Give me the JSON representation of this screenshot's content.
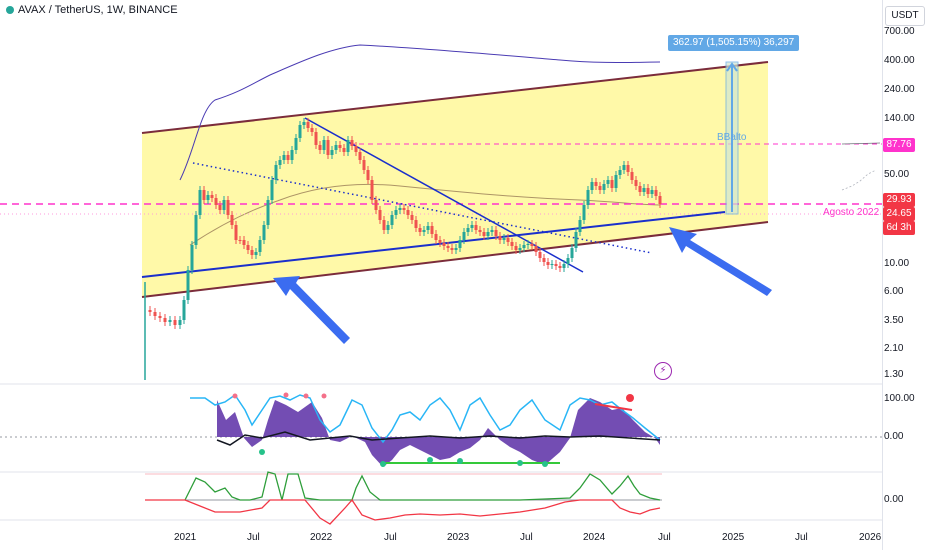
{
  "header": {
    "symbol_title": "AVAX / TetherUS, 1W, BINANCE"
  },
  "price_axis": {
    "currency": "USDT",
    "ticks": [
      "700.00",
      "400.00",
      "240.00",
      "140.00",
      "87.76",
      "50.00",
      "29.93",
      "24.65",
      "6d 3h",
      "10.00",
      "6.00",
      "3.50",
      "2.10",
      "1.30"
    ],
    "last_price": "24.65",
    "countdown": "6d 3h",
    "level_tag_upper": "87.76",
    "level_tag_lower": "29.93"
  },
  "osc_axis": {
    "upper_ticks": [
      "100.00",
      "0.00"
    ],
    "lower_ticks": [
      "0.00"
    ]
  },
  "time_axis": {
    "ticks": [
      "2021",
      "Jul",
      "2022",
      "Jul",
      "2023",
      "Jul",
      "2024",
      "Jul",
      "2025",
      "Jul",
      "2026"
    ]
  },
  "annotations": {
    "measure_label": "362.97 (1,505.15%) 36,297",
    "bb_label": "BBalto",
    "date_label": "Agosto 2022"
  },
  "colors": {
    "channel_fill": "#fff9a8",
    "channel_border": "#7b2c3b",
    "trendline_blue": "#1a2fcc",
    "arrow_blue": "#3b6cf0",
    "dashed_magenta": "#ff33cc",
    "price_tag_red": "#f23645",
    "measure_blue": "#62a8e6",
    "osc_purple": "#5b2ea6",
    "osc_cyan": "#29b6f6",
    "up_candle": "#26a69a",
    "down_candle": "#ef5350"
  },
  "icons": {
    "flash_icon": "lightning"
  }
}
